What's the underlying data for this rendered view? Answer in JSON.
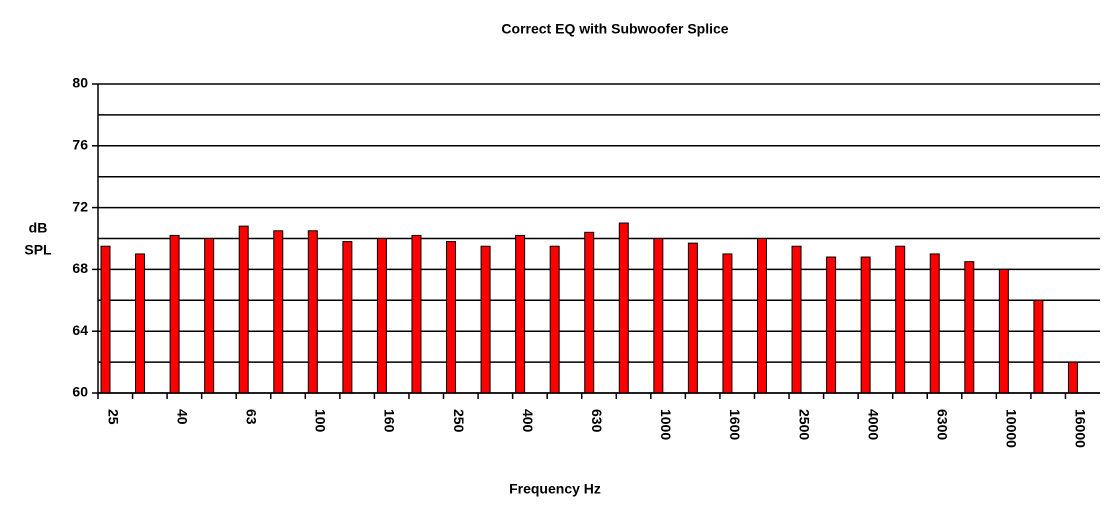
{
  "chart_data": {
    "type": "bar",
    "title": "Correct EQ with Subwoofer Splice",
    "xlabel": "Frequency Hz",
    "ylabel": [
      "dB",
      "SPL"
    ],
    "categories": [
      "25",
      null,
      "40",
      null,
      "63",
      null,
      "100",
      null,
      "160",
      null,
      "250",
      null,
      "400",
      null,
      "630",
      null,
      "1000",
      null,
      "1600",
      null,
      "2500",
      null,
      "4000",
      null,
      "6300",
      null,
      "10000",
      null,
      "16000"
    ],
    "values": [
      69.5,
      69,
      70.2,
      70,
      70.8,
      70.5,
      70.5,
      69.8,
      70,
      70.2,
      69.8,
      69.5,
      70.2,
      69.5,
      70.4,
      71,
      70,
      69.7,
      69,
      70,
      69.5,
      68.8,
      68.8,
      69.5,
      69,
      68.5,
      68,
      66,
      62
    ],
    "color": "#ff0000",
    "ylim": [
      60,
      80
    ],
    "yticks": [
      60,
      64,
      68,
      72,
      76,
      80
    ],
    "ygrid": [
      60,
      62,
      64,
      66,
      68,
      70,
      72,
      74,
      76,
      78,
      80
    ],
    "grid": true
  }
}
